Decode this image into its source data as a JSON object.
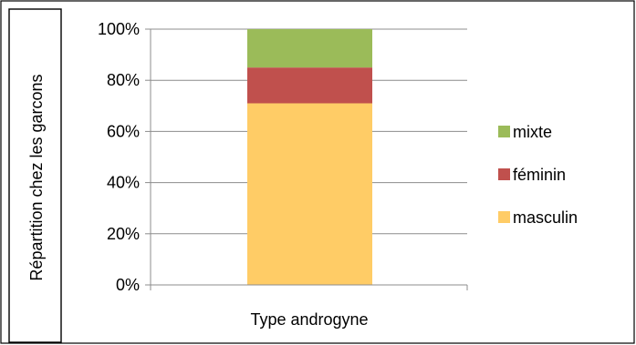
{
  "chart_data": {
    "type": "bar",
    "stacked": true,
    "categories": [
      "Type androgyne"
    ],
    "series": [
      {
        "name": "masculin",
        "values": [
          0.71
        ],
        "color": "#FFCC66"
      },
      {
        "name": "féminin",
        "values": [
          0.14
        ],
        "color": "#C0504D"
      },
      {
        "name": "mixte",
        "values": [
          0.15
        ],
        "color": "#9BBB59"
      }
    ],
    "title": "",
    "xlabel": "",
    "ylabel": "Répartition chez les garcons",
    "ylim": [
      0,
      1
    ],
    "y_ticks": [
      "0%",
      "20%",
      "40%",
      "60%",
      "80%",
      "100%"
    ],
    "grid": true,
    "legend_position": "right"
  }
}
